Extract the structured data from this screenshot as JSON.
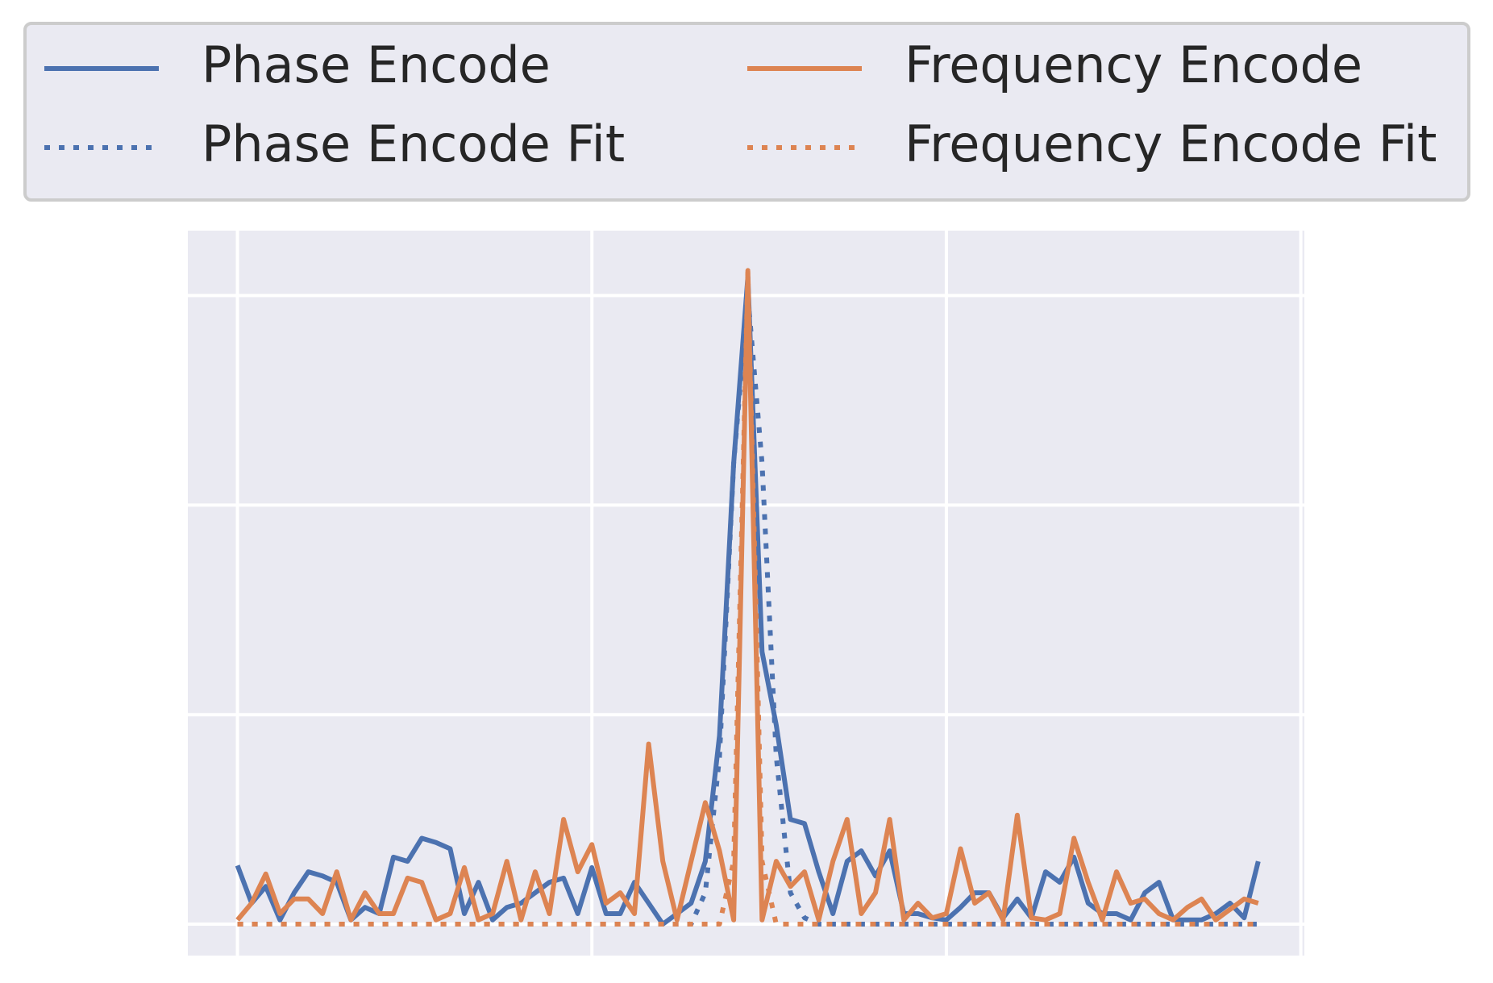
{
  "chart_data": {
    "type": "line",
    "x": [
      0,
      4,
      8,
      12,
      16,
      20,
      24,
      28,
      32,
      36,
      40,
      44,
      48,
      52,
      56,
      60,
      64,
      68,
      72,
      76,
      80,
      84,
      88,
      92,
      96,
      100,
      104,
      108,
      112,
      116,
      120,
      124,
      128,
      132,
      136,
      140,
      144,
      148,
      152,
      156,
      160,
      164,
      168,
      172,
      176,
      180,
      184,
      188,
      192,
      196,
      200,
      204,
      208,
      212,
      216,
      220,
      224,
      228,
      232,
      236,
      240,
      244,
      248,
      252,
      256,
      260,
      264,
      268,
      272,
      276,
      280,
      284,
      288
    ],
    "series": [
      {
        "name": "Phase Encode",
        "color": "#4c72b0",
        "linestyle": "solid",
        "values": [
          0.28,
          0.1,
          0.18,
          0.02,
          0.15,
          0.25,
          0.23,
          0.2,
          0.02,
          0.08,
          0.05,
          0.32,
          0.3,
          0.41,
          0.39,
          0.36,
          0.05,
          0.2,
          0.02,
          0.08,
          0.1,
          0.15,
          0.2,
          0.22,
          0.05,
          0.27,
          0.05,
          0.05,
          0.2,
          0.1,
          0,
          0.05,
          0.1,
          0.3,
          0.9,
          2.2,
          3.09,
          1.3,
          0.95,
          0.5,
          0.48,
          0.25,
          0.05,
          0.3,
          0.35,
          0.23,
          0.35,
          0.05,
          0.05,
          0.03,
          0.02,
          0.08,
          0.15,
          0.15,
          0.03,
          0.12,
          0.03,
          0.25,
          0.2,
          0.32,
          0.1,
          0.05,
          0.05,
          0.02,
          0.15,
          0.2,
          0.02,
          0.02,
          0.02,
          0.05,
          0.1,
          0.03,
          0.3
        ]
      },
      {
        "name": "Phase Encode Fit",
        "color": "#4c72b0",
        "linestyle": "dotted",
        "values": [
          0,
          0,
          0,
          0,
          0,
          0,
          0,
          0,
          0,
          0,
          0,
          0,
          0,
          0,
          0,
          0,
          0,
          0,
          0,
          0,
          0,
          0,
          0,
          0,
          0,
          0,
          0,
          0,
          0,
          0,
          0,
          0,
          0,
          0.15,
          0.8,
          2.2,
          3.0,
          2.2,
          0.8,
          0.15,
          0.03,
          0,
          0,
          0,
          0,
          0,
          0,
          0,
          0,
          0,
          0,
          0,
          0,
          0,
          0,
          0,
          0,
          0,
          0,
          0,
          0,
          0,
          0,
          0,
          0,
          0,
          0,
          0,
          0,
          0,
          0,
          0,
          0
        ]
      },
      {
        "name": "Frequency Encode",
        "color": "#dd8452",
        "linestyle": "solid",
        "values": [
          0.02,
          0.1,
          0.24,
          0.05,
          0.12,
          0.12,
          0.05,
          0.25,
          0.02,
          0.15,
          0.05,
          0.05,
          0.22,
          0.2,
          0.02,
          0.05,
          0.27,
          0.02,
          0.05,
          0.3,
          0.02,
          0.25,
          0.05,
          0.5,
          0.25,
          0.38,
          0.1,
          0.15,
          0.05,
          0.86,
          0.3,
          0.02,
          0.3,
          0.58,
          0.35,
          0.02,
          3.11,
          0.02,
          0.3,
          0.18,
          0.25,
          0.02,
          0.3,
          0.5,
          0.05,
          0.15,
          0.5,
          0.02,
          0.1,
          0.03,
          0.05,
          0.36,
          0.1,
          0.15,
          0.02,
          0.52,
          0.03,
          0.02,
          0.05,
          0.41,
          0.2,
          0.02,
          0.25,
          0.1,
          0.12,
          0.05,
          0.02,
          0.08,
          0.12,
          0.02,
          0.07,
          0.12,
          0.1
        ]
      },
      {
        "name": "Frequency Encode Fit",
        "color": "#dd8452",
        "linestyle": "dotted",
        "values": [
          0,
          0,
          0,
          0,
          0,
          0,
          0,
          0,
          0,
          0,
          0,
          0,
          0,
          0,
          0,
          0,
          0,
          0,
          0,
          0,
          0,
          0,
          0,
          0,
          0,
          0,
          0,
          0,
          0,
          0,
          0,
          0,
          0,
          0,
          0,
          0.3,
          3.12,
          0.3,
          0,
          0,
          0,
          0,
          0,
          0,
          0,
          0,
          0,
          0,
          0,
          0,
          0,
          0,
          0,
          0,
          0,
          0,
          0,
          0,
          0,
          0,
          0,
          0,
          0,
          0,
          0,
          0,
          0,
          0,
          0,
          0,
          0,
          0,
          0
        ]
      }
    ],
    "xlim": [
      -14,
      301
    ],
    "ylim": [
      -0.15,
      3.31
    ],
    "xticks": [
      0,
      100,
      200,
      300
    ],
    "yticks": [
      0,
      1,
      2,
      3
    ],
    "grid": true,
    "legend": "upper center"
  }
}
